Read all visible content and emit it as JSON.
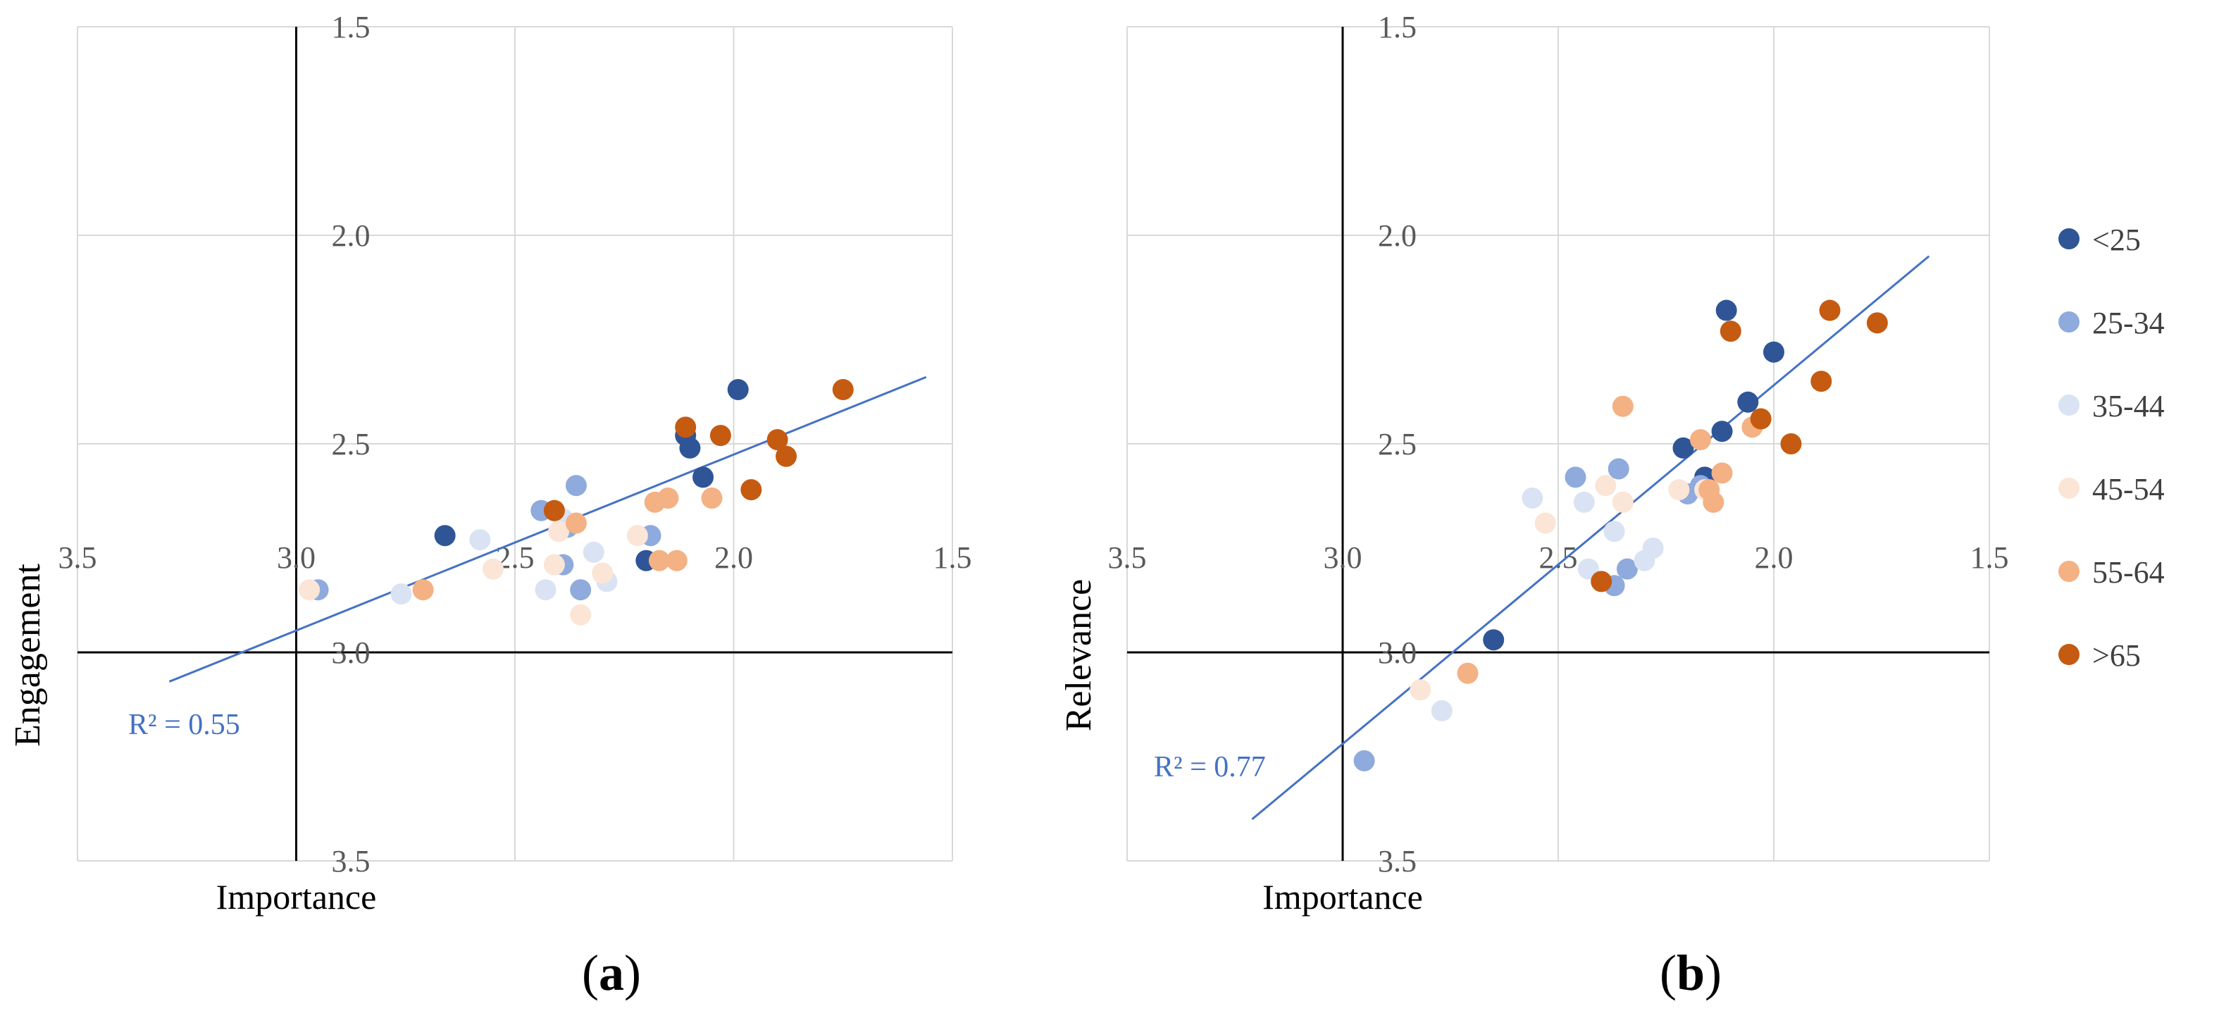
{
  "figure": {
    "labels": [
      "a",
      "b"
    ]
  },
  "legend": {
    "items": [
      {
        "label": "<25",
        "color": "#2F5597"
      },
      {
        "label": "25-34",
        "color": "#8FAADC"
      },
      {
        "label": "35-44",
        "color": "#DAE3F3"
      },
      {
        "label": "45-54",
        "color": "#FBE5D6"
      },
      {
        "label": "55-64",
        "color": "#F4B183"
      },
      {
        "label": ">65",
        "color": "#C55A11"
      }
    ]
  },
  "chart_data": [
    {
      "type": "scatter",
      "panel": "a",
      "xlabel": "Importance",
      "ylabel": "Engagement",
      "xlim": [
        3.5,
        1.5
      ],
      "ylim": [
        1.5,
        3.5
      ],
      "x_ticks": [
        "3.5",
        "3.0",
        "2.5",
        "2.0",
        "1.5"
      ],
      "y_ticks": [
        "1.5",
        "2.0",
        "2.5",
        "3.0",
        "3.5"
      ],
      "x_axis_reversed": true,
      "y_axis_reversed": true,
      "grid": true,
      "trendline": {
        "x1": 3.29,
        "y1": 3.07,
        "x2": 1.56,
        "y2": 2.34,
        "color": "#4472C4",
        "r2_text": "R² = 0.55"
      },
      "series": [
        {
          "name": "<25",
          "x": [
            2.66,
            2.2,
            2.07,
            2.11,
            2.1,
            1.99
          ],
          "y": [
            2.72,
            2.78,
            2.58,
            2.48,
            2.51,
            2.37
          ]
        },
        {
          "name": "25-34",
          "x": [
            2.95,
            2.44,
            2.38,
            2.36,
            2.35,
            2.39,
            2.19
          ],
          "y": [
            2.85,
            2.66,
            2.7,
            2.6,
            2.85,
            2.79,
            2.72
          ]
        },
        {
          "name": "35-44",
          "x": [
            2.58,
            2.43,
            2.39,
            2.32,
            2.29,
            2.76
          ],
          "y": [
            2.73,
            2.85,
            2.68,
            2.76,
            2.83,
            2.86
          ]
        },
        {
          "name": "45-54",
          "x": [
            2.97,
            2.55,
            2.4,
            2.3,
            2.35,
            2.22,
            2.41
          ],
          "y": [
            2.85,
            2.8,
            2.71,
            2.81,
            2.91,
            2.72,
            2.79
          ]
        },
        {
          "name": "55-64",
          "x": [
            2.71,
            2.36,
            2.18,
            2.15,
            2.17,
            2.13,
            2.05
          ],
          "y": [
            2.85,
            2.69,
            2.64,
            2.63,
            2.78,
            2.78,
            2.63
          ]
        },
        {
          "name": ">65",
          "x": [
            2.41,
            2.11,
            2.03,
            1.9,
            1.96,
            1.88,
            1.75
          ],
          "y": [
            2.66,
            2.46,
            2.48,
            2.49,
            2.61,
            2.53,
            2.37
          ]
        }
      ]
    },
    {
      "type": "scatter",
      "panel": "b",
      "xlabel": "Importance",
      "ylabel": "Relevance",
      "xlim": [
        3.5,
        1.5
      ],
      "ylim": [
        1.5,
        3.5
      ],
      "x_ticks": [
        "3.5",
        "3.0",
        "2.5",
        "2.0",
        "1.5"
      ],
      "y_ticks": [
        "1.5",
        "2.0",
        "2.5",
        "3.0",
        "3.5"
      ],
      "x_axis_reversed": true,
      "y_axis_reversed": true,
      "grid": true,
      "trendline": {
        "x1": 3.21,
        "y1": 3.4,
        "x2": 1.64,
        "y2": 2.05,
        "color": "#4472C4",
        "r2_text": "R² = 0.77"
      },
      "series": [
        {
          "name": "<25",
          "x": [
            2.65,
            2.21,
            2.16,
            2.12,
            2.06,
            2.11,
            2.0
          ],
          "y": [
            2.97,
            2.51,
            2.58,
            2.47,
            2.4,
            2.18,
            2.28
          ]
        },
        {
          "name": "25-34",
          "x": [
            2.95,
            2.46,
            2.37,
            2.34,
            2.36,
            2.2,
            2.17
          ],
          "y": [
            3.26,
            2.58,
            2.84,
            2.8,
            2.56,
            2.62,
            2.6
          ]
        },
        {
          "name": "35-44",
          "x": [
            2.56,
            2.44,
            2.37,
            2.3,
            2.28,
            2.43,
            2.77
          ],
          "y": [
            2.63,
            2.64,
            2.71,
            2.78,
            2.75,
            2.8,
            3.14
          ]
        },
        {
          "name": "45-54",
          "x": [
            2.53,
            2.39,
            2.35,
            2.22,
            2.82,
            2.16
          ],
          "y": [
            2.69,
            2.6,
            2.64,
            2.61,
            3.09,
            2.61
          ]
        },
        {
          "name": "55-64",
          "x": [
            2.35,
            2.17,
            2.12,
            2.14,
            2.15,
            2.05,
            2.71
          ],
          "y": [
            2.41,
            2.49,
            2.57,
            2.64,
            2.61,
            2.46,
            3.05
          ]
        },
        {
          "name": ">65",
          "x": [
            2.4,
            2.1,
            2.03,
            1.96,
            1.89,
            1.87,
            1.76
          ],
          "y": [
            2.83,
            2.23,
            2.44,
            2.5,
            2.35,
            2.18,
            2.21
          ]
        }
      ]
    }
  ]
}
